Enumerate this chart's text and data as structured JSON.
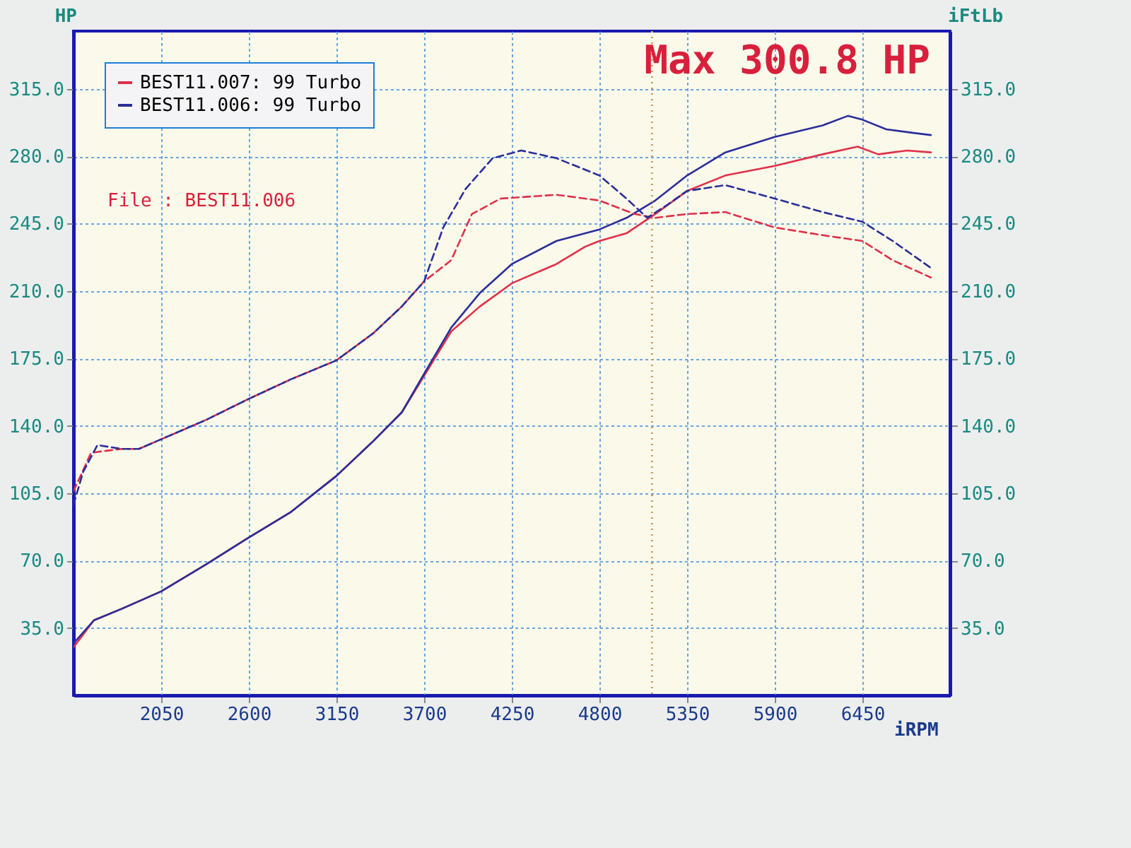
{
  "chart_data": {
    "type": "line",
    "xlabel": "iRPM",
    "ylabel": "HP",
    "y2label": "iFtLb",
    "xlim": [
      1500,
      7000
    ],
    "xticks": [
      2050,
      2600,
      3150,
      3700,
      4250,
      4800,
      5350,
      5900,
      6450
    ],
    "ylim": [
      0,
      345
    ],
    "yticks": [
      {
        "value": 35,
        "label": "35.0"
      },
      {
        "value": 70,
        "label": "70.0"
      },
      {
        "value": 105,
        "label": "105.0"
      },
      {
        "value": 140,
        "label": "140.0"
      },
      {
        "value": 175,
        "label": "175.0"
      },
      {
        "value": 210,
        "label": "210.0"
      },
      {
        "value": 245,
        "label": "245.0"
      },
      {
        "value": 280,
        "label": "280.0"
      },
      {
        "value": 315,
        "label": "315.0"
      }
    ],
    "y2lim": [
      0,
      345
    ],
    "y2ticks": [
      {
        "value": 35,
        "label": "35.0"
      },
      {
        "value": 70,
        "label": "70.0"
      },
      {
        "value": 105,
        "label": "105.0"
      },
      {
        "value": 140,
        "label": "140.0"
      },
      {
        "value": 175,
        "label": "175.0"
      },
      {
        "value": 210,
        "label": "210.0"
      },
      {
        "value": 245,
        "label": "245.0"
      },
      {
        "value": 280,
        "label": "280.0"
      },
      {
        "value": 315,
        "label": "315.0"
      }
    ],
    "grid": true,
    "legend": "top left",
    "series": [
      {
        "name": "BEST11.007: 99 Turbo",
        "color": "#e0304a",
        "line_style": "solid",
        "x": [
          1500,
          1628,
          1804,
          2050,
          2332,
          2600,
          2860,
          3150,
          3380,
          3560,
          3700,
          3870,
          4050,
          4250,
          4530,
          4710,
          4800,
          4970,
          5150,
          5350,
          5590,
          5900,
          6200,
          6420,
          6550,
          6730,
          6880
        ],
        "values": [
          25,
          39,
          45,
          54,
          68,
          82,
          95,
          114,
          132,
          147,
          166,
          189,
          202,
          214,
          224,
          233,
          236,
          240,
          250,
          262,
          270,
          275,
          281,
          285,
          281,
          283,
          282
        ]
      },
      {
        "name": "BEST11.006: 99 Turbo",
        "color": "#2a2f9a",
        "line_style": "solid",
        "x": [
          1500,
          1628,
          1804,
          2050,
          2332,
          2600,
          2860,
          3150,
          3380,
          3560,
          3700,
          3870,
          4050,
          4250,
          4530,
          4800,
          4970,
          5150,
          5350,
          5590,
          5900,
          6200,
          6360,
          6450,
          6600,
          6780,
          6880
        ],
        "values": [
          27,
          39,
          45,
          54,
          68,
          82,
          95,
          114,
          132,
          147,
          167,
          191,
          209,
          224,
          236,
          242,
          248,
          257,
          270,
          282,
          290,
          296,
          301,
          299,
          294,
          292,
          291
        ]
      },
      {
        "color": "#e0304a",
        "line_style": "dashed",
        "axis": "y2",
        "x": [
          1500,
          1610,
          1800,
          1910,
          2050,
          2330,
          2600,
          2860,
          3150,
          3380,
          3560,
          3700,
          3870,
          4000,
          4180,
          4530,
          4800,
          5020,
          5150,
          5350,
          5590,
          5900,
          6200,
          6450,
          6640,
          6880
        ],
        "values": [
          106,
          126,
          128,
          128,
          133,
          143,
          154,
          164,
          174,
          188,
          202,
          215,
          226,
          250,
          258,
          260,
          257,
          250,
          248,
          250,
          251,
          243,
          239,
          236,
          226,
          217
        ]
      },
      {
        "color": "#2a2f9a",
        "line_style": "dashed",
        "axis": "y2",
        "x": [
          1500,
          1560,
          1650,
          1800,
          1910,
          2050,
          2330,
          2600,
          2860,
          3150,
          3380,
          3560,
          3700,
          3820,
          3960,
          4130,
          4310,
          4530,
          4800,
          4970,
          5100,
          5230,
          5350,
          5590,
          5900,
          6200,
          6450,
          6640,
          6880
        ],
        "values": [
          99,
          116,
          130,
          128,
          128,
          133,
          143,
          154,
          164,
          174,
          188,
          202,
          215,
          243,
          263,
          279,
          283,
          279,
          270,
          258,
          248,
          255,
          262,
          265,
          258,
          251,
          246,
          236,
          222
        ]
      }
    ],
    "ref_lines": [
      {
        "axis": "x",
        "value": 5130,
        "color": "#c8a060",
        "line_style": "dotted"
      }
    ],
    "annotations": [
      "Max 300.8 HP",
      "File      : BEST11.006"
    ]
  }
}
